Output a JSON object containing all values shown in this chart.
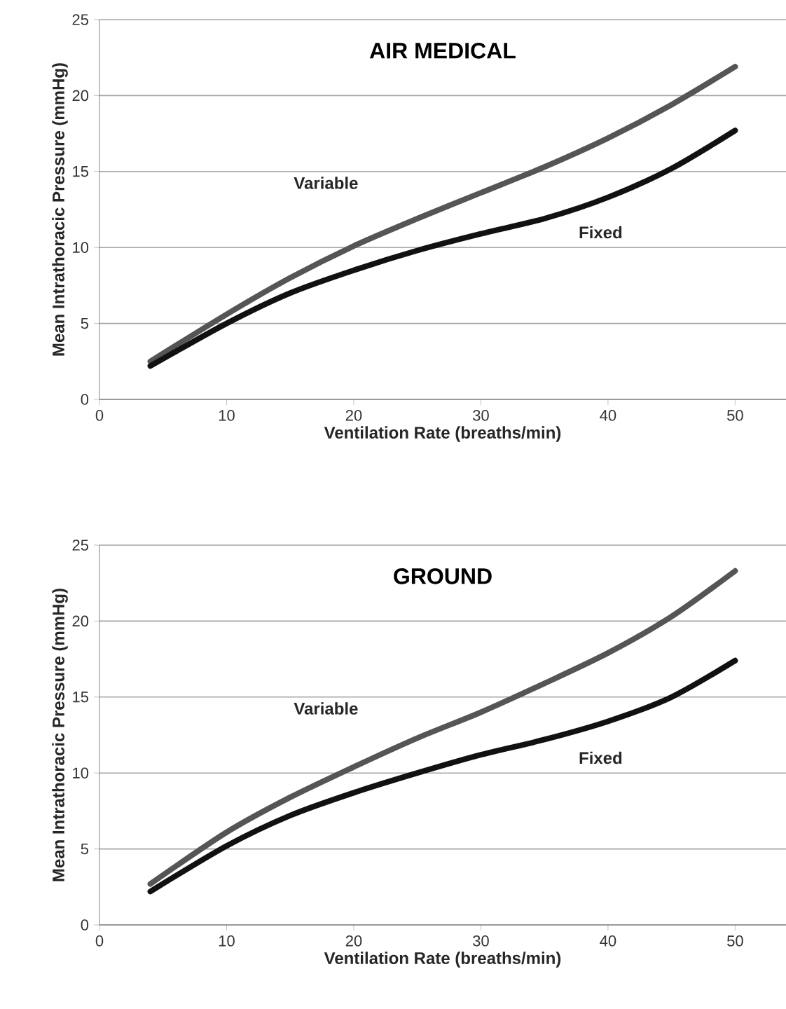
{
  "chart_data": [
    {
      "type": "line",
      "title": "AIR MEDICAL",
      "xlabel": "Ventilation Rate (breaths/min)",
      "ylabel": "Mean Intrathoracic Pressure (mmHg)",
      "x": [
        4,
        10,
        15,
        20,
        25,
        30,
        35,
        40,
        45,
        50
      ],
      "series": [
        {
          "name": "Variable",
          "color": "#555555",
          "values": [
            2.5,
            5.6,
            8.0,
            10.1,
            11.9,
            13.6,
            15.3,
            17.2,
            19.4,
            21.9
          ]
        },
        {
          "name": "Fixed",
          "color": "#111111",
          "values": [
            2.2,
            5.0,
            7.0,
            8.5,
            9.8,
            10.9,
            11.9,
            13.3,
            15.2,
            17.7
          ]
        }
      ],
      "xlim": [
        0,
        54
      ],
      "ylim": [
        0,
        25
      ],
      "xticks": [
        0,
        10,
        20,
        30,
        40,
        50
      ],
      "yticks": [
        0,
        5,
        10,
        15,
        20,
        25
      ],
      "grid": "y"
    },
    {
      "type": "line",
      "title": "GROUND",
      "xlabel": "Ventilation Rate (breaths/min)",
      "ylabel": "Mean Intrathoracic Pressure (mmHg)",
      "x": [
        4,
        10,
        15,
        20,
        25,
        30,
        35,
        40,
        45,
        50
      ],
      "series": [
        {
          "name": "Variable",
          "color": "#555555",
          "values": [
            2.7,
            6.1,
            8.4,
            10.4,
            12.3,
            14.0,
            15.9,
            17.9,
            20.3,
            23.3
          ]
        },
        {
          "name": "Fixed",
          "color": "#111111",
          "values": [
            2.2,
            5.2,
            7.2,
            8.7,
            10.0,
            11.2,
            12.2,
            13.4,
            15.0,
            17.4
          ]
        }
      ],
      "xlim": [
        0,
        54
      ],
      "ylim": [
        0,
        25
      ],
      "xticks": [
        0,
        10,
        20,
        30,
        40,
        50
      ],
      "yticks": [
        0,
        5,
        10,
        15,
        20,
        25
      ],
      "grid": "y"
    }
  ]
}
